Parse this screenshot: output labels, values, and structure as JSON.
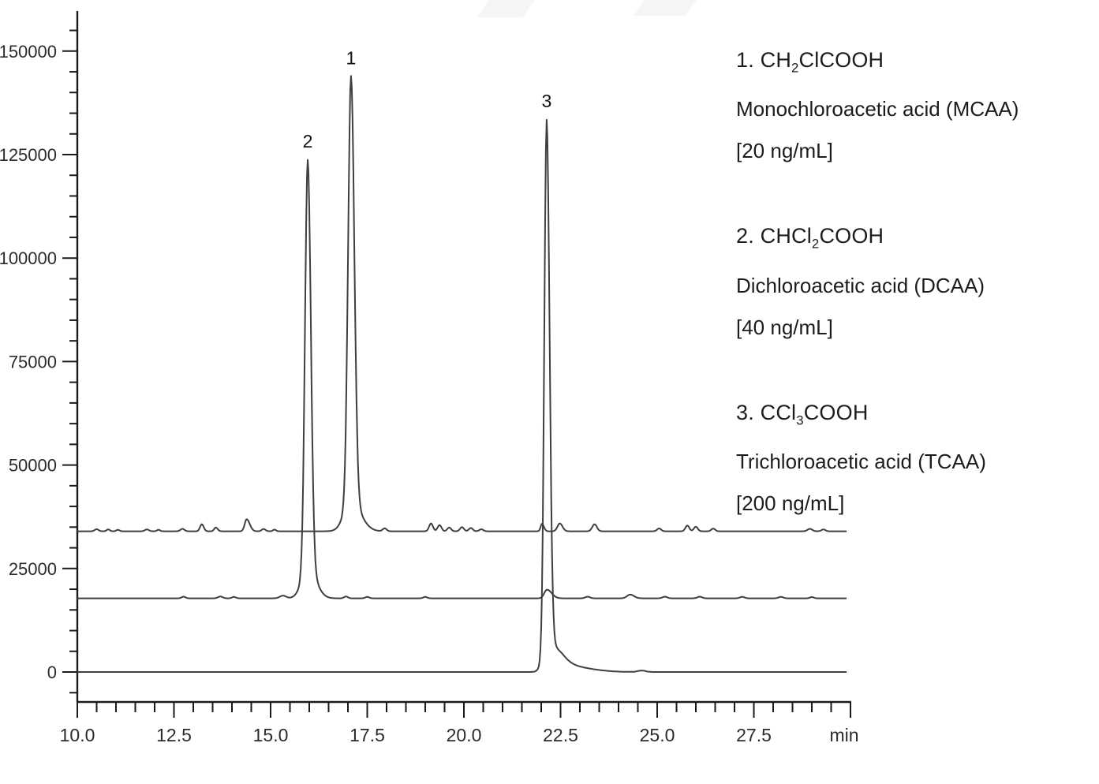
{
  "chart_data": {
    "type": "line",
    "title": "",
    "xlabel": "min",
    "ylabel": "",
    "grid": false,
    "legend_position": "right",
    "x_range": [
      10.0,
      30.0
    ],
    "y_range": [
      0,
      150000
    ],
    "x_tick_values": [
      10.0,
      12.5,
      15.0,
      17.5,
      20.0,
      22.5,
      25.0,
      27.5,
      30.0
    ],
    "x_tick_labels": [
      "10.0",
      "12.5",
      "15.0",
      "17.5",
      "20.0",
      "22.5",
      "25.0",
      "27.5",
      "min"
    ],
    "x_minor_step": 0.5,
    "y_tick_values": [
      0,
      25000,
      50000,
      75000,
      100000,
      125000,
      150000
    ],
    "y_tick_labels": [
      "0",
      "25000",
      "50000",
      "75000",
      "100000",
      "125000",
      "150000"
    ],
    "y_minor_step": 5000,
    "axis_color": "#1a1a1a",
    "tick_label_color": "#2b2b2b",
    "trace_color": "#3f3f3f",
    "peaks": [
      {
        "peak": 1,
        "analyte": "Monochloroacetic acid (MCAA)",
        "formula": "CH2ClCOOH",
        "concentration": "20 ng/mL",
        "retention_time_min": 17.1,
        "apex_response": 143800,
        "trace_baseline": 34000
      },
      {
        "peak": 2,
        "analyte": "Dichloroacetic acid (DCAA)",
        "formula": "CHCl2COOH",
        "concentration": "40 ng/mL",
        "retention_time_min": 16.0,
        "apex_response": 123700,
        "trace_baseline": 17800
      },
      {
        "peak": 3,
        "analyte": "Trichloroacetic acid (TCAA)",
        "formula": "CCl3COOH",
        "concentration": "200 ng/mL",
        "retention_time_min": 22.1,
        "apex_response": 133400,
        "trace_baseline": 0
      }
    ],
    "peak_annotations": [
      {
        "label": "1",
        "t": 17.08,
        "value": 143800
      },
      {
        "label": "2",
        "t": 15.96,
        "value": 123650
      },
      {
        "label": "3",
        "t": 22.14,
        "value": 133350
      }
    ],
    "series": [
      {
        "id": "mcaa",
        "name": "MCAA trace (baseline 34000)",
        "baseline": 34000,
        "components": [
          [
            10.5,
            500,
            0.05,
            0.05
          ],
          [
            10.8,
            450,
            0.04,
            0.04
          ],
          [
            11.05,
            350,
            0.04,
            0.04
          ],
          [
            11.8,
            450,
            0.05,
            0.05
          ],
          [
            12.1,
            350,
            0.04,
            0.04
          ],
          [
            12.72,
            600,
            0.05,
            0.05
          ],
          [
            13.22,
            1700,
            0.045,
            0.05
          ],
          [
            13.58,
            900,
            0.04,
            0.05
          ],
          [
            14.38,
            2900,
            0.05,
            0.08
          ],
          [
            14.82,
            550,
            0.05,
            0.05
          ],
          [
            15.1,
            400,
            0.04,
            0.04
          ],
          [
            17.08,
            103000,
            0.075,
            0.085
          ],
          [
            17.08,
            7000,
            0.18,
            0.25
          ],
          [
            17.95,
            700,
            0.05,
            0.05
          ],
          [
            19.15,
            1900,
            0.05,
            0.05
          ],
          [
            19.37,
            1500,
            0.05,
            0.05
          ],
          [
            19.62,
            900,
            0.05,
            0.05
          ],
          [
            19.95,
            1000,
            0.05,
            0.05
          ],
          [
            20.18,
            800,
            0.05,
            0.05
          ],
          [
            20.45,
            500,
            0.05,
            0.05
          ],
          [
            22.02,
            1800,
            0.035,
            0.05
          ],
          [
            22.48,
            1900,
            0.06,
            0.07
          ],
          [
            23.38,
            1700,
            0.06,
            0.06
          ],
          [
            25.05,
            700,
            0.05,
            0.05
          ],
          [
            25.78,
            1400,
            0.05,
            0.05
          ],
          [
            26.0,
            1100,
            0.05,
            0.05
          ],
          [
            26.45,
            650,
            0.05,
            0.05
          ],
          [
            28.95,
            600,
            0.06,
            0.06
          ],
          [
            29.3,
            450,
            0.05,
            0.05
          ]
        ]
      },
      {
        "id": "dcaa",
        "name": "DCAA trace (baseline 17800)",
        "baseline": 17800,
        "components": [
          [
            12.75,
            400,
            0.05,
            0.05
          ],
          [
            13.7,
            450,
            0.06,
            0.06
          ],
          [
            14.05,
            350,
            0.05,
            0.05
          ],
          [
            15.32,
            650,
            0.08,
            0.08
          ],
          [
            15.96,
            99000,
            0.07,
            0.08
          ],
          [
            15.98,
            7000,
            0.17,
            0.2
          ],
          [
            16.95,
            450,
            0.05,
            0.05
          ],
          [
            17.5,
            350,
            0.05,
            0.05
          ],
          [
            19.0,
            350,
            0.05,
            0.05
          ],
          [
            22.15,
            2100,
            0.07,
            0.12
          ],
          [
            23.2,
            400,
            0.06,
            0.06
          ],
          [
            24.3,
            900,
            0.08,
            0.1
          ],
          [
            25.2,
            400,
            0.06,
            0.06
          ],
          [
            26.1,
            400,
            0.06,
            0.06
          ],
          [
            27.2,
            350,
            0.06,
            0.06
          ],
          [
            28.2,
            350,
            0.06,
            0.06
          ],
          [
            29.0,
            300,
            0.05,
            0.05
          ]
        ]
      },
      {
        "id": "tcaa",
        "name": "TCAA trace (baseline 0)",
        "baseline": 0,
        "components": [
          [
            22.14,
            127000,
            0.06,
            0.075
          ],
          [
            22.17,
            6500,
            0.12,
            0.3
          ],
          [
            22.6,
            1500,
            0.2,
            0.6
          ],
          [
            24.6,
            350,
            0.1,
            0.1
          ]
        ]
      }
    ]
  },
  "legend": {
    "items": [
      {
        "formula_parts": [
          {
            "text": "1. CH"
          },
          {
            "sub": "2"
          },
          {
            "text": "ClCOOH"
          }
        ],
        "name": "Monochloroacetic acid (MCAA)",
        "concentration": "[20 ng/mL]"
      },
      {
        "formula_parts": [
          {
            "text": "2. CHCl"
          },
          {
            "sub": "2"
          },
          {
            "text": "COOH"
          }
        ],
        "name": "Dichloroacetic acid (DCAA)",
        "concentration": "[40 ng/mL]"
      },
      {
        "formula_parts": [
          {
            "text": "3. CCl"
          },
          {
            "sub": "3"
          },
          {
            "text": "COOH"
          }
        ],
        "name": "Trichloroacetic acid (TCAA)",
        "concentration": "[200 ng/mL]"
      }
    ]
  }
}
